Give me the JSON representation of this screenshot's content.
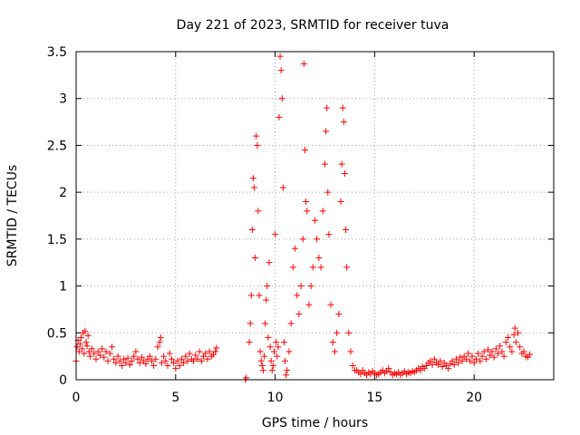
{
  "chart_data": {
    "type": "scatter",
    "title": "Day 221 of 2023, SRMTID for receiver tuva",
    "xlabel": "GPS time / hours",
    "ylabel": "SRMTID / TECUs",
    "xlim": [
      0,
      24
    ],
    "ylim": [
      0,
      3.5
    ],
    "xticks": [
      0,
      5,
      10,
      15,
      20
    ],
    "xtick_labels": [
      "0",
      "5",
      "10",
      "15",
      "20"
    ],
    "yticks": [
      0,
      0.5,
      1,
      1.5,
      2,
      2.5,
      3,
      3.5
    ],
    "ytick_labels": [
      "0",
      "0.5",
      "1",
      "1.5",
      "2",
      "2.5",
      "3",
      "3.5"
    ],
    "grid": true,
    "marker": "+",
    "color": "#ff0000",
    "series": [
      {
        "name": "SRMTID",
        "points": [
          [
            0.0,
            0.2
          ],
          [
            0.05,
            0.35
          ],
          [
            0.1,
            0.42
          ],
          [
            0.15,
            0.3
          ],
          [
            0.2,
            0.38
          ],
          [
            0.25,
            0.45
          ],
          [
            0.3,
            0.33
          ],
          [
            0.35,
            0.5
          ],
          [
            0.4,
            0.28
          ],
          [
            0.45,
            0.52
          ],
          [
            0.5,
            0.4
          ],
          [
            0.55,
            0.36
          ],
          [
            0.6,
            0.47
          ],
          [
            0.65,
            0.3
          ],
          [
            0.7,
            0.25
          ],
          [
            0.8,
            0.33
          ],
          [
            0.9,
            0.28
          ],
          [
            1.0,
            0.22
          ],
          [
            1.1,
            0.3
          ],
          [
            1.2,
            0.26
          ],
          [
            1.3,
            0.33
          ],
          [
            1.4,
            0.24
          ],
          [
            1.5,
            0.3
          ],
          [
            1.6,
            0.2
          ],
          [
            1.7,
            0.28
          ],
          [
            1.8,
            0.35
          ],
          [
            1.9,
            0.22
          ],
          [
            2.0,
            0.18
          ],
          [
            2.1,
            0.25
          ],
          [
            2.2,
            0.2
          ],
          [
            2.3,
            0.15
          ],
          [
            2.4,
            0.22
          ],
          [
            2.5,
            0.18
          ],
          [
            2.6,
            0.23
          ],
          [
            2.7,
            0.16
          ],
          [
            2.8,
            0.2
          ],
          [
            2.9,
            0.25
          ],
          [
            3.0,
            0.3
          ],
          [
            3.1,
            0.22
          ],
          [
            3.2,
            0.18
          ],
          [
            3.3,
            0.24
          ],
          [
            3.4,
            0.2
          ],
          [
            3.5,
            0.17
          ],
          [
            3.6,
            0.22
          ],
          [
            3.7,
            0.25
          ],
          [
            3.8,
            0.2
          ],
          [
            3.9,
            0.15
          ],
          [
            4.0,
            0.22
          ],
          [
            4.1,
            0.35
          ],
          [
            4.2,
            0.4
          ],
          [
            4.25,
            0.45
          ],
          [
            4.3,
            0.18
          ],
          [
            4.4,
            0.25
          ],
          [
            4.5,
            0.2
          ],
          [
            4.6,
            0.15
          ],
          [
            4.7,
            0.28
          ],
          [
            4.8,
            0.22
          ],
          [
            4.9,
            0.18
          ],
          [
            5.0,
            0.12
          ],
          [
            5.1,
            0.2
          ],
          [
            5.2,
            0.15
          ],
          [
            5.3,
            0.22
          ],
          [
            5.4,
            0.18
          ],
          [
            5.5,
            0.25
          ],
          [
            5.6,
            0.2
          ],
          [
            5.7,
            0.28
          ],
          [
            5.8,
            0.22
          ],
          [
            5.9,
            0.2
          ],
          [
            6.0,
            0.26
          ],
          [
            6.1,
            0.22
          ],
          [
            6.2,
            0.3
          ],
          [
            6.3,
            0.2
          ],
          [
            6.4,
            0.25
          ],
          [
            6.5,
            0.28
          ],
          [
            6.6,
            0.22
          ],
          [
            6.7,
            0.3
          ],
          [
            6.8,
            0.25
          ],
          [
            6.9,
            0.27
          ],
          [
            7.0,
            0.3
          ],
          [
            7.05,
            0.34
          ],
          [
            8.5,
            0.0
          ],
          [
            8.55,
            0.02
          ],
          [
            8.7,
            0.4
          ],
          [
            8.75,
            0.6
          ],
          [
            8.8,
            0.9
          ],
          [
            8.85,
            1.6
          ],
          [
            8.9,
            2.15
          ],
          [
            8.95,
            2.05
          ],
          [
            9.0,
            1.3
          ],
          [
            9.05,
            2.6
          ],
          [
            9.1,
            2.5
          ],
          [
            9.15,
            1.8
          ],
          [
            9.2,
            0.9
          ],
          [
            9.25,
            0.3
          ],
          [
            9.3,
            0.2
          ],
          [
            9.35,
            0.15
          ],
          [
            9.4,
            0.1
          ],
          [
            9.45,
            0.25
          ],
          [
            9.5,
            0.6
          ],
          [
            9.55,
            0.85
          ],
          [
            9.6,
            1.0
          ],
          [
            9.65,
            0.45
          ],
          [
            9.7,
            1.25
          ],
          [
            9.75,
            0.35
          ],
          [
            9.8,
            0.2
          ],
          [
            9.85,
            0.1
          ],
          [
            9.9,
            0.15
          ],
          [
            9.95,
            0.3
          ],
          [
            10.0,
            1.55
          ],
          [
            10.05,
            0.4
          ],
          [
            10.1,
            0.25
          ],
          [
            10.15,
            0.35
          ],
          [
            10.2,
            2.8
          ],
          [
            10.25,
            3.45
          ],
          [
            10.3,
            3.3
          ],
          [
            10.35,
            3.0
          ],
          [
            10.4,
            2.05
          ],
          [
            10.45,
            0.4
          ],
          [
            10.5,
            0.2
          ],
          [
            10.55,
            0.05
          ],
          [
            10.6,
            0.1
          ],
          [
            10.7,
            0.3
          ],
          [
            10.8,
            0.6
          ],
          [
            10.9,
            1.2
          ],
          [
            11.0,
            1.4
          ],
          [
            11.1,
            0.9
          ],
          [
            11.2,
            0.7
          ],
          [
            11.3,
            1.0
          ],
          [
            11.4,
            1.5
          ],
          [
            11.45,
            3.37
          ],
          [
            11.5,
            2.45
          ],
          [
            11.55,
            1.9
          ],
          [
            11.6,
            1.8
          ],
          [
            11.7,
            0.8
          ],
          [
            11.8,
            1.0
          ],
          [
            11.9,
            1.2
          ],
          [
            12.0,
            1.7
          ],
          [
            12.1,
            1.5
          ],
          [
            12.2,
            1.3
          ],
          [
            12.3,
            1.2
          ],
          [
            12.4,
            1.8
          ],
          [
            12.5,
            2.3
          ],
          [
            12.55,
            2.65
          ],
          [
            12.6,
            2.9
          ],
          [
            12.65,
            2.0
          ],
          [
            12.7,
            1.55
          ],
          [
            12.8,
            0.8
          ],
          [
            12.9,
            0.4
          ],
          [
            13.0,
            0.3
          ],
          [
            13.1,
            0.5
          ],
          [
            13.2,
            0.7
          ],
          [
            13.3,
            1.9
          ],
          [
            13.35,
            2.3
          ],
          [
            13.4,
            2.9
          ],
          [
            13.45,
            2.75
          ],
          [
            13.5,
            2.2
          ],
          [
            13.55,
            1.6
          ],
          [
            13.6,
            1.2
          ],
          [
            13.7,
            0.5
          ],
          [
            13.8,
            0.3
          ],
          [
            13.9,
            0.15
          ],
          [
            14.0,
            0.1
          ],
          [
            14.1,
            0.1
          ],
          [
            14.2,
            0.08
          ],
          [
            14.3,
            0.06
          ],
          [
            14.4,
            0.1
          ],
          [
            14.5,
            0.07
          ],
          [
            14.6,
            0.05
          ],
          [
            14.7,
            0.08
          ],
          [
            14.8,
            0.06
          ],
          [
            14.9,
            0.09
          ],
          [
            15.0,
            0.07
          ],
          [
            15.1,
            0.05
          ],
          [
            15.2,
            0.06
          ],
          [
            15.3,
            0.08
          ],
          [
            15.4,
            0.1
          ],
          [
            15.5,
            0.07
          ],
          [
            15.6,
            0.09
          ],
          [
            15.7,
            0.12
          ],
          [
            15.8,
            0.08
          ],
          [
            15.9,
            0.05
          ],
          [
            16.0,
            0.07
          ],
          [
            16.1,
            0.06
          ],
          [
            16.2,
            0.08
          ],
          [
            16.3,
            0.05
          ],
          [
            16.4,
            0.07
          ],
          [
            16.5,
            0.09
          ],
          [
            16.6,
            0.06
          ],
          [
            16.7,
            0.08
          ],
          [
            16.8,
            0.07
          ],
          [
            16.9,
            0.09
          ],
          [
            17.0,
            0.08
          ],
          [
            17.1,
            0.1
          ],
          [
            17.2,
            0.12
          ],
          [
            17.3,
            0.1
          ],
          [
            17.4,
            0.14
          ],
          [
            17.5,
            0.12
          ],
          [
            17.6,
            0.15
          ],
          [
            17.7,
            0.18
          ],
          [
            17.8,
            0.2
          ],
          [
            17.9,
            0.16
          ],
          [
            18.0,
            0.22
          ],
          [
            18.1,
            0.18
          ],
          [
            18.2,
            0.16
          ],
          [
            18.3,
            0.2
          ],
          [
            18.4,
            0.14
          ],
          [
            18.5,
            0.18
          ],
          [
            18.6,
            0.15
          ],
          [
            18.7,
            0.12
          ],
          [
            18.8,
            0.17
          ],
          [
            18.9,
            0.2
          ],
          [
            19.0,
            0.16
          ],
          [
            19.1,
            0.22
          ],
          [
            19.2,
            0.18
          ],
          [
            19.3,
            0.24
          ],
          [
            19.4,
            0.2
          ],
          [
            19.5,
            0.25
          ],
          [
            19.6,
            0.22
          ],
          [
            19.7,
            0.28
          ],
          [
            19.8,
            0.2
          ],
          [
            19.9,
            0.25
          ],
          [
            20.0,
            0.18
          ],
          [
            20.1,
            0.22
          ],
          [
            20.2,
            0.28
          ],
          [
            20.3,
            0.2
          ],
          [
            20.4,
            0.25
          ],
          [
            20.5,
            0.3
          ],
          [
            20.6,
            0.22
          ],
          [
            20.7,
            0.32
          ],
          [
            20.8,
            0.26
          ],
          [
            20.9,
            0.3
          ],
          [
            21.0,
            0.24
          ],
          [
            21.1,
            0.33
          ],
          [
            21.2,
            0.28
          ],
          [
            21.3,
            0.36
          ],
          [
            21.4,
            0.3
          ],
          [
            21.5,
            0.25
          ],
          [
            21.6,
            0.4
          ],
          [
            21.7,
            0.45
          ],
          [
            21.8,
            0.35
          ],
          [
            21.9,
            0.3
          ],
          [
            22.0,
            0.48
          ],
          [
            22.05,
            0.55
          ],
          [
            22.1,
            0.4
          ],
          [
            22.2,
            0.5
          ],
          [
            22.3,
            0.35
          ],
          [
            22.4,
            0.28
          ],
          [
            22.5,
            0.3
          ],
          [
            22.6,
            0.25
          ],
          [
            22.7,
            0.24
          ],
          [
            22.8,
            0.27
          ]
        ]
      }
    ]
  }
}
